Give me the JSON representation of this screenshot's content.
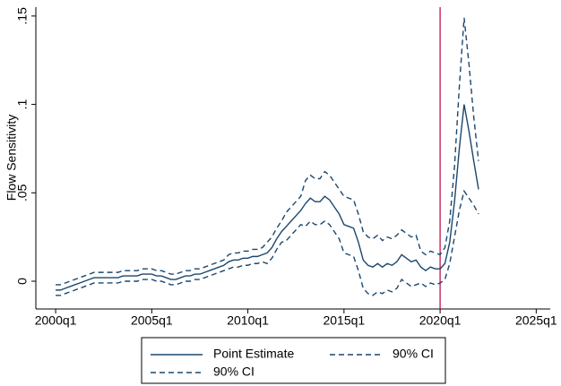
{
  "chart_data": {
    "type": "line",
    "y_label": "Flow Sensitivity",
    "x": [
      2000,
      2000.25,
      2000.5,
      2000.75,
      2001,
      2001.25,
      2001.5,
      2001.75,
      2002,
      2002.25,
      2002.5,
      2002.75,
      2003,
      2003.25,
      2003.5,
      2003.75,
      2004,
      2004.25,
      2004.5,
      2004.75,
      2005,
      2005.25,
      2005.5,
      2005.75,
      2006,
      2006.25,
      2006.5,
      2006.75,
      2007,
      2007.25,
      2007.5,
      2007.75,
      2008,
      2008.25,
      2008.5,
      2008.75,
      2009,
      2009.25,
      2009.5,
      2009.75,
      2010,
      2010.25,
      2010.5,
      2010.75,
      2011,
      2011.25,
      2011.5,
      2011.75,
      2012,
      2012.25,
      2012.5,
      2012.75,
      2013,
      2013.25,
      2013.5,
      2013.75,
      2014,
      2014.25,
      2014.5,
      2014.75,
      2015,
      2015.25,
      2015.5,
      2015.75,
      2016,
      2016.25,
      2016.5,
      2016.75,
      2017,
      2017.25,
      2017.5,
      2017.75,
      2018,
      2018.25,
      2018.5,
      2018.75,
      2019,
      2019.25,
      2019.5,
      2019.75,
      2020,
      2020.25,
      2020.5,
      2020.75,
      2021,
      2021.25,
      2021.5,
      2021.75,
      2022
    ],
    "series": [
      {
        "name": "Point Estimate",
        "color": "#1a476f",
        "dashed": false,
        "values": [
          -0.005,
          -0.005,
          -0.004,
          -0.003,
          -0.002,
          -0.001,
          0,
          0.001,
          0.002,
          0.002,
          0.002,
          0.002,
          0.002,
          0.002,
          0.003,
          0.003,
          0.003,
          0.003,
          0.004,
          0.004,
          0.004,
          0.003,
          0.003,
          0.002,
          0.001,
          0.001,
          0.002,
          0.003,
          0.003,
          0.004,
          0.004,
          0.005,
          0.006,
          0.007,
          0.008,
          0.009,
          0.011,
          0.012,
          0.012,
          0.013,
          0.013,
          0.014,
          0.014,
          0.015,
          0.016,
          0.019,
          0.024,
          0.028,
          0.031,
          0.034,
          0.037,
          0.04,
          0.044,
          0.047,
          0.045,
          0.045,
          0.048,
          0.046,
          0.042,
          0.038,
          0.032,
          0.031,
          0.03,
          0.022,
          0.012,
          0.009,
          0.008,
          0.01,
          0.008,
          0.01,
          0.009,
          0.011,
          0.015,
          0.013,
          0.011,
          0.012,
          0.008,
          0.006,
          0.008,
          0.007,
          0.007,
          0.01,
          0.022,
          0.045,
          0.075,
          0.1,
          0.085,
          0.068,
          0.052
        ]
      },
      {
        "name": "90% CI",
        "color": "#1a476f",
        "dashed": true,
        "values": [
          -0.002,
          -0.002,
          -0.001,
          0,
          0.001,
          0.002,
          0.003,
          0.004,
          0.005,
          0.005,
          0.005,
          0.005,
          0.005,
          0.005,
          0.006,
          0.006,
          0.006,
          0.006,
          0.007,
          0.007,
          0.007,
          0.006,
          0.006,
          0.005,
          0.004,
          0.004,
          0.005,
          0.006,
          0.006,
          0.007,
          0.007,
          0.008,
          0.009,
          0.01,
          0.011,
          0.012,
          0.015,
          0.016,
          0.016,
          0.017,
          0.017,
          0.018,
          0.018,
          0.019,
          0.022,
          0.025,
          0.03,
          0.034,
          0.039,
          0.042,
          0.045,
          0.048,
          0.057,
          0.06,
          0.058,
          0.058,
          0.062,
          0.06,
          0.056,
          0.052,
          0.048,
          0.047,
          0.046,
          0.038,
          0.028,
          0.025,
          0.024,
          0.026,
          0.023,
          0.025,
          0.024,
          0.026,
          0.029,
          0.027,
          0.025,
          0.026,
          0.017,
          0.015,
          0.017,
          0.016,
          0.015,
          0.019,
          0.034,
          0.065,
          0.11,
          0.149,
          0.123,
          0.093,
          0.068
        ]
      },
      {
        "name": "90% CI",
        "color": "#1a476f",
        "dashed": true,
        "values": [
          -0.008,
          -0.008,
          -0.007,
          -0.006,
          -0.005,
          -0.004,
          -0.003,
          -0.002,
          -0.001,
          -0.001,
          -0.001,
          -0.001,
          -0.001,
          -0.001,
          0,
          0,
          0,
          0,
          0.001,
          0.001,
          0.001,
          0,
          0,
          -0.001,
          -0.002,
          -0.002,
          -0.001,
          0,
          0,
          0.001,
          0.001,
          0.002,
          0.003,
          0.004,
          0.005,
          0.006,
          0.007,
          0.008,
          0.008,
          0.009,
          0.009,
          0.01,
          0.01,
          0.011,
          0.01,
          0.013,
          0.018,
          0.022,
          0.023,
          0.026,
          0.029,
          0.032,
          0.031,
          0.034,
          0.032,
          0.032,
          0.034,
          0.032,
          0.028,
          0.024,
          0.016,
          0.015,
          0.014,
          0.006,
          -0.004,
          -0.007,
          -0.008,
          -0.006,
          -0.007,
          -0.005,
          -0.006,
          -0.004,
          0.001,
          -0.001,
          -0.003,
          -0.002,
          -0.001,
          -0.003,
          -0.001,
          -0.002,
          -0.001,
          0.001,
          0.01,
          0.025,
          0.04,
          0.051,
          0.047,
          0.043,
          0.038
        ]
      }
    ],
    "xlim": [
      1998.97,
      2025.73
    ],
    "xticks": [
      {
        "value": 2000,
        "label": "2000q1"
      },
      {
        "value": 2005,
        "label": "2005q1"
      },
      {
        "value": 2010,
        "label": "2010q1"
      },
      {
        "value": 2015,
        "label": "2015q1"
      },
      {
        "value": 2020,
        "label": "2020q1"
      },
      {
        "value": 2025,
        "label": "2025q1"
      }
    ],
    "ylim": [
      -0.0157,
      0.155
    ],
    "yticks": [
      0,
      {
        "value": 0.05,
        "label": ".05"
      },
      {
        "value": 0.1,
        "label": ".1"
      },
      {
        "value": 0.15,
        "label": ".15"
      }
    ],
    "vline": 2020,
    "vline_color": "#c0144c",
    "grid": false,
    "legend": "bottom"
  }
}
